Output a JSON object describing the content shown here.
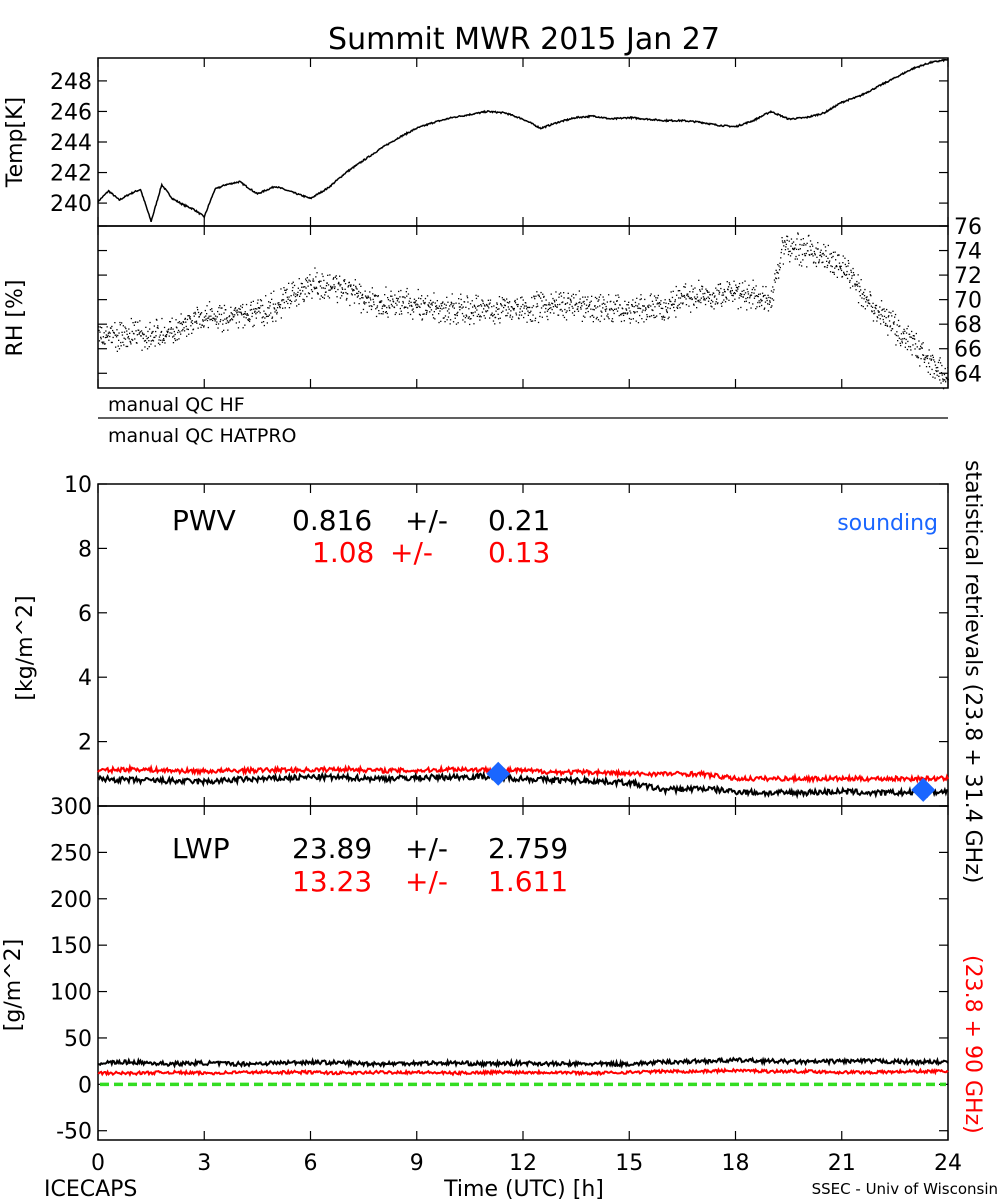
{
  "title": "Summit MWR 2015 Jan 27",
  "colors": {
    "black_series": "#000000",
    "red_series": "#ff0000",
    "sounding": "#1a66ff",
    "zero_line": "#33dd22"
  },
  "footer": {
    "left": "ICECAPS",
    "center": "Time (UTC) [h]",
    "right": "SSEC - Univ of Wisconsin"
  },
  "right_labels": {
    "black": "statistical retrievals (23.8 + 31.4 GHz)",
    "red": "(23.8 + 90 GHz)"
  },
  "qc_labels": [
    "manual QC HF",
    "manual QC HATPRO"
  ],
  "sounding_label": "sounding",
  "pwv_stats": {
    "name": "PWV",
    "black_mean": "0.816",
    "black_sd": "0.21",
    "red_mean": "1.08",
    "red_sd": "0.13",
    "pm": "+/-"
  },
  "lwp_stats": {
    "name": "LWP",
    "black_mean": "23.89",
    "black_sd": "2.759",
    "red_mean": "13.23",
    "red_sd": "1.611",
    "pm": "+/-"
  },
  "chart_data": [
    {
      "panel": "temperature",
      "type": "line",
      "ylabel": "Temp[K]",
      "xlim": [
        0,
        24
      ],
      "ylim": [
        238.5,
        249.5
      ],
      "yticks": [
        240,
        242,
        244,
        246,
        248
      ],
      "x": [
        0,
        0.3,
        0.6,
        0.9,
        1.2,
        1.5,
        1.8,
        2.1,
        2.4,
        2.7,
        3.0,
        3.3,
        3.6,
        4.0,
        4.5,
        5.0,
        5.5,
        6.0,
        6.5,
        7.0,
        7.5,
        8.0,
        8.5,
        9.0,
        9.5,
        10.0,
        10.5,
        11.0,
        11.5,
        12.0,
        12.5,
        13.0,
        13.5,
        14.0,
        14.5,
        15.0,
        15.5,
        16.0,
        16.5,
        17.0,
        17.5,
        18.0,
        18.5,
        19.0,
        19.5,
        20.0,
        20.5,
        21.0,
        21.5,
        22.0,
        22.5,
        23.0,
        23.5,
        24.0
      ],
      "values": [
        240.1,
        240.8,
        240.2,
        240.6,
        240.9,
        238.8,
        241.2,
        240.3,
        239.9,
        239.6,
        239.1,
        240.9,
        241.2,
        241.4,
        240.6,
        241.1,
        240.7,
        240.3,
        241.0,
        242.0,
        242.8,
        243.6,
        244.3,
        244.9,
        245.3,
        245.6,
        245.8,
        246.0,
        245.9,
        245.5,
        244.9,
        245.3,
        245.6,
        245.7,
        245.5,
        245.6,
        245.5,
        245.4,
        245.4,
        245.3,
        245.1,
        245.0,
        245.4,
        246.0,
        245.5,
        245.6,
        245.9,
        246.6,
        247.0,
        247.6,
        248.2,
        248.8,
        249.2,
        249.4
      ]
    },
    {
      "panel": "relative humidity",
      "type": "scatter",
      "ylabel": "RH [%]",
      "xlim": [
        0,
        24
      ],
      "ylim": [
        62.8,
        76
      ],
      "yticks": [
        64,
        66,
        68,
        70,
        72,
        74,
        76
      ],
      "x": [
        0,
        1,
        2,
        3,
        4,
        5,
        6,
        7,
        8,
        9,
        10,
        11,
        12,
        13,
        14,
        15,
        16,
        17,
        18,
        19,
        19.3,
        20,
        21,
        22,
        23,
        24
      ],
      "values": [
        67.0,
        67.2,
        67.3,
        68.5,
        68.7,
        69.5,
        71.4,
        70.7,
        69.8,
        69.6,
        69.2,
        69.3,
        69.4,
        69.6,
        69.4,
        69.2,
        69.5,
        70.5,
        70.5,
        70.0,
        74.2,
        74.1,
        72.8,
        69.0,
        66.5,
        63.3
      ]
    },
    {
      "panel": "PWV",
      "type": "line",
      "ylabel": "[kg/m^2]",
      "xlim": [
        0,
        24
      ],
      "ylim": [
        0,
        10
      ],
      "yticks": [
        0,
        2,
        4,
        6,
        8,
        10
      ],
      "series": [
        {
          "x": [
            0,
            1,
            2,
            3,
            4,
            5,
            6,
            7,
            8,
            9,
            10,
            11,
            12,
            13,
            14,
            15,
            16,
            17,
            18,
            19,
            20,
            21,
            22,
            23,
            24
          ],
          "values": [
            0.85,
            0.8,
            0.78,
            0.75,
            0.82,
            0.85,
            0.9,
            0.88,
            0.85,
            0.88,
            0.9,
            0.92,
            0.85,
            0.8,
            0.78,
            0.72,
            0.5,
            0.55,
            0.45,
            0.4,
            0.42,
            0.45,
            0.4,
            0.42,
            0.45
          ]
        },
        {
          "x": [
            0,
            1,
            2,
            3,
            4,
            5,
            6,
            7,
            8,
            9,
            10,
            11,
            12,
            13,
            14,
            15,
            16,
            17,
            18,
            19,
            20,
            21,
            22,
            23,
            24
          ],
          "values": [
            1.1,
            1.15,
            1.1,
            1.08,
            1.1,
            1.12,
            1.12,
            1.15,
            1.1,
            1.1,
            1.15,
            1.12,
            1.1,
            1.05,
            1.05,
            1.0,
            1.0,
            1.0,
            0.85,
            0.85,
            0.85,
            0.85,
            0.85,
            0.85,
            0.85
          ]
        }
      ],
      "sounding": {
        "x": [
          11.3,
          23.3
        ],
        "values": [
          1.0,
          0.5
        ]
      }
    },
    {
      "panel": "LWP",
      "type": "line",
      "ylabel": "[g/m^2]",
      "xlabel": "Time (UTC) [h]",
      "xlim": [
        0,
        24
      ],
      "ylim": [
        -60,
        300
      ],
      "xticks": [
        0,
        3,
        6,
        9,
        12,
        15,
        18,
        21,
        24
      ],
      "yticks": [
        -50,
        0,
        50,
        100,
        150,
        200,
        250,
        300
      ],
      "series": [
        {
          "x": [
            0,
            1,
            2,
            3,
            4,
            5,
            6,
            7,
            8,
            9,
            10,
            11,
            12,
            13,
            14,
            15,
            16,
            17,
            18,
            19,
            20,
            21,
            22,
            23,
            24
          ],
          "values": [
            23,
            24,
            22,
            23,
            22,
            23,
            24,
            23,
            22,
            23,
            23,
            22,
            23,
            22,
            22,
            22,
            24,
            25,
            26,
            25,
            24,
            25,
            25,
            24,
            24
          ]
        },
        {
          "x": [
            0,
            1,
            2,
            3,
            4,
            5,
            6,
            7,
            8,
            9,
            10,
            11,
            12,
            13,
            14,
            15,
            16,
            17,
            18,
            19,
            20,
            21,
            22,
            23,
            24
          ],
          "values": [
            12,
            12,
            13,
            12,
            13,
            13,
            13,
            12,
            13,
            13,
            12,
            13,
            13,
            13,
            12,
            13,
            14,
            14,
            15,
            14,
            14,
            13,
            13,
            14,
            14
          ]
        }
      ],
      "zero_line": 0
    }
  ]
}
